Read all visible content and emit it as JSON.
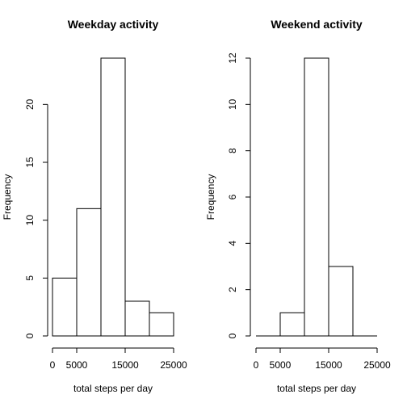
{
  "chart_data": [
    {
      "type": "bar",
      "title": "Weekday activity",
      "xlabel": "total steps per day",
      "ylabel": "Frequency",
      "bins": [
        [
          0,
          5000
        ],
        [
          5000,
          10000
        ],
        [
          10000,
          15000
        ],
        [
          15000,
          20000
        ],
        [
          20000,
          25000
        ]
      ],
      "values": [
        5,
        11,
        24,
        3,
        2
      ],
      "xlim": [
        0,
        25000
      ],
      "ylim": [
        0,
        24
      ],
      "x_ticks": [
        0,
        5000,
        15000,
        25000
      ],
      "x_tick_labels": [
        "0",
        "5000",
        "15000",
        "25000"
      ],
      "y_ticks": [
        0,
        5,
        10,
        15,
        20
      ],
      "y_tick_labels": [
        "0",
        "5",
        "10",
        "15",
        "20"
      ],
      "grid": false,
      "bar_fill": "#ffffff",
      "bar_stroke": "#000000"
    },
    {
      "type": "bar",
      "title": "Weekend activity",
      "xlabel": "total steps per day",
      "ylabel": "Frequency",
      "bins": [
        [
          0,
          5000
        ],
        [
          5000,
          10000
        ],
        [
          10000,
          15000
        ],
        [
          15000,
          20000
        ],
        [
          20000,
          25000
        ]
      ],
      "values": [
        0,
        1,
        12,
        3,
        0
      ],
      "xlim": [
        0,
        25000
      ],
      "ylim": [
        0,
        12
      ],
      "x_ticks": [
        0,
        5000,
        15000,
        25000
      ],
      "x_tick_labels": [
        "0",
        "5000",
        "15000",
        "25000"
      ],
      "y_ticks": [
        0,
        2,
        4,
        6,
        8,
        10,
        12
      ],
      "y_tick_labels": [
        "0",
        "2",
        "4",
        "6",
        "8",
        "10",
        "12"
      ],
      "grid": false,
      "bar_fill": "#ffffff",
      "bar_stroke": "#000000"
    }
  ]
}
